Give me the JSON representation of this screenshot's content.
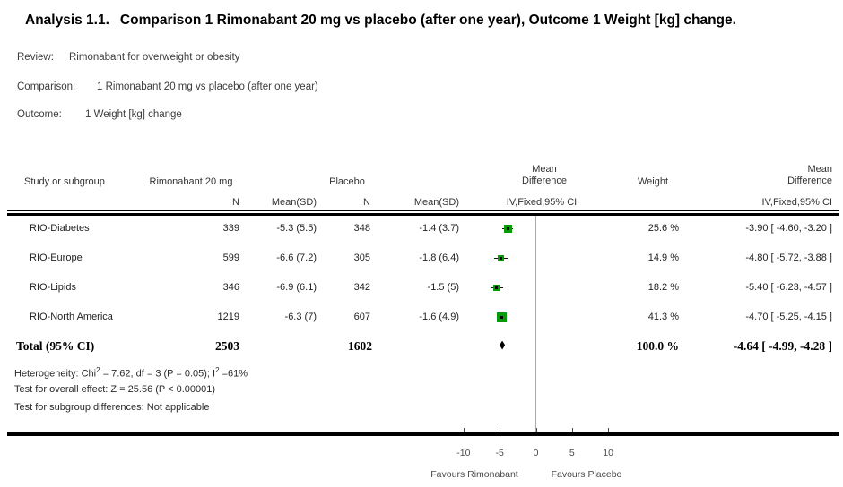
{
  "title": {
    "prefix": "Analysis 1.1.",
    "text": "Comparison 1 Rimonabant 20 mg vs placebo (after one year), Outcome 1 Weight [kg] change."
  },
  "meta": {
    "review_label": "Review:",
    "review": "Rimonabant for overweight or obesity",
    "comparison_label": "Comparison:",
    "comparison": "1 Rimonabant 20 mg vs placebo (after one year)",
    "outcome_label": "Outcome:",
    "outcome": "1 Weight [kg] change"
  },
  "table": {
    "headers": {
      "study": "Study or subgroup",
      "treatment_group": "Rimonabant 20 mg",
      "control_group": "Placebo",
      "n": "N",
      "mean_sd": "Mean(SD)",
      "md_line1": "Mean",
      "md_line2": "Difference",
      "ci_method": "IV,Fixed,95% CI",
      "weight": "Weight"
    },
    "rows": [
      {
        "study": "RIO-Diabetes",
        "n1": "339",
        "mean_sd1": "-5.3 (5.5)",
        "n2": "348",
        "mean_sd2": "-1.4 (3.7)",
        "weight": "25.6 %",
        "md_ci": "-3.90 [ -4.60, -3.20 ]"
      },
      {
        "study": "RIO-Europe",
        "n1": "599",
        "mean_sd1": "-6.6 (7.2)",
        "n2": "305",
        "mean_sd2": "-1.8 (6.4)",
        "weight": "14.9 %",
        "md_ci": "-4.80 [ -5.72, -3.88 ]"
      },
      {
        "study": "RIO-Lipids",
        "n1": "346",
        "mean_sd1": "-6.9 (6.1)",
        "n2": "342",
        "mean_sd2": "-1.5 (5)",
        "weight": "18.2 %",
        "md_ci": "-5.40 [ -6.23, -4.57 ]"
      },
      {
        "study": "RIO-North America",
        "n1": "1219",
        "mean_sd1": "-6.3 (7)",
        "n2": "607",
        "mean_sd2": "-1.6 (4.9)",
        "weight": "41.3 %",
        "md_ci": "-4.70 [ -5.25, -4.15 ]"
      }
    ],
    "total": {
      "label": "Total (95% CI)",
      "n1": "2503",
      "n2": "1602",
      "weight": "100.0 %",
      "md_ci": "-4.64 [ -4.99, -4.28 ]"
    },
    "footnotes": {
      "heterogeneity_pre": "Heterogeneity: Chi",
      "heterogeneity_sup1": "2",
      "heterogeneity_mid": " = 7.62, df = 3 (P = 0.05); I",
      "heterogeneity_sup2": "2",
      "heterogeneity_post": " =61%",
      "overall_effect": "Test for overall effect: Z = 25.56 (P < 0.00001)",
      "subgroup_diff": "Test for subgroup differences: Not applicable"
    }
  },
  "chart_data": {
    "type": "forest",
    "effect_measure": "Mean Difference, IV, Fixed, 95% CI",
    "studies": [
      {
        "name": "RIO-Diabetes",
        "md": -3.9,
        "ci_low": -4.6,
        "ci_high": -3.2,
        "weight_pct": 25.6
      },
      {
        "name": "RIO-Europe",
        "md": -4.8,
        "ci_low": -5.72,
        "ci_high": -3.88,
        "weight_pct": 14.9
      },
      {
        "name": "RIO-Lipids",
        "md": -5.4,
        "ci_low": -6.23,
        "ci_high": -4.57,
        "weight_pct": 18.2
      },
      {
        "name": "RIO-North America",
        "md": -4.7,
        "ci_low": -5.25,
        "ci_high": -4.15,
        "weight_pct": 41.3
      }
    ],
    "total": {
      "name": "Total (95% CI)",
      "md": -4.64,
      "ci_low": -4.99,
      "ci_high": -4.28,
      "weight_pct": 100.0
    },
    "axis": {
      "ticks": [
        -10,
        -5,
        0,
        5,
        10
      ],
      "tick_labels": [
        "-10",
        "-5",
        "0",
        "5",
        "10"
      ]
    },
    "favours_left": "Favours Rimonabant",
    "favours_right": "Favours Placebo",
    "colors": {
      "study_marker": "#089b08",
      "ci_line": "#111111",
      "diamond": "#000000",
      "zero_line": "#aaaaaa"
    }
  }
}
